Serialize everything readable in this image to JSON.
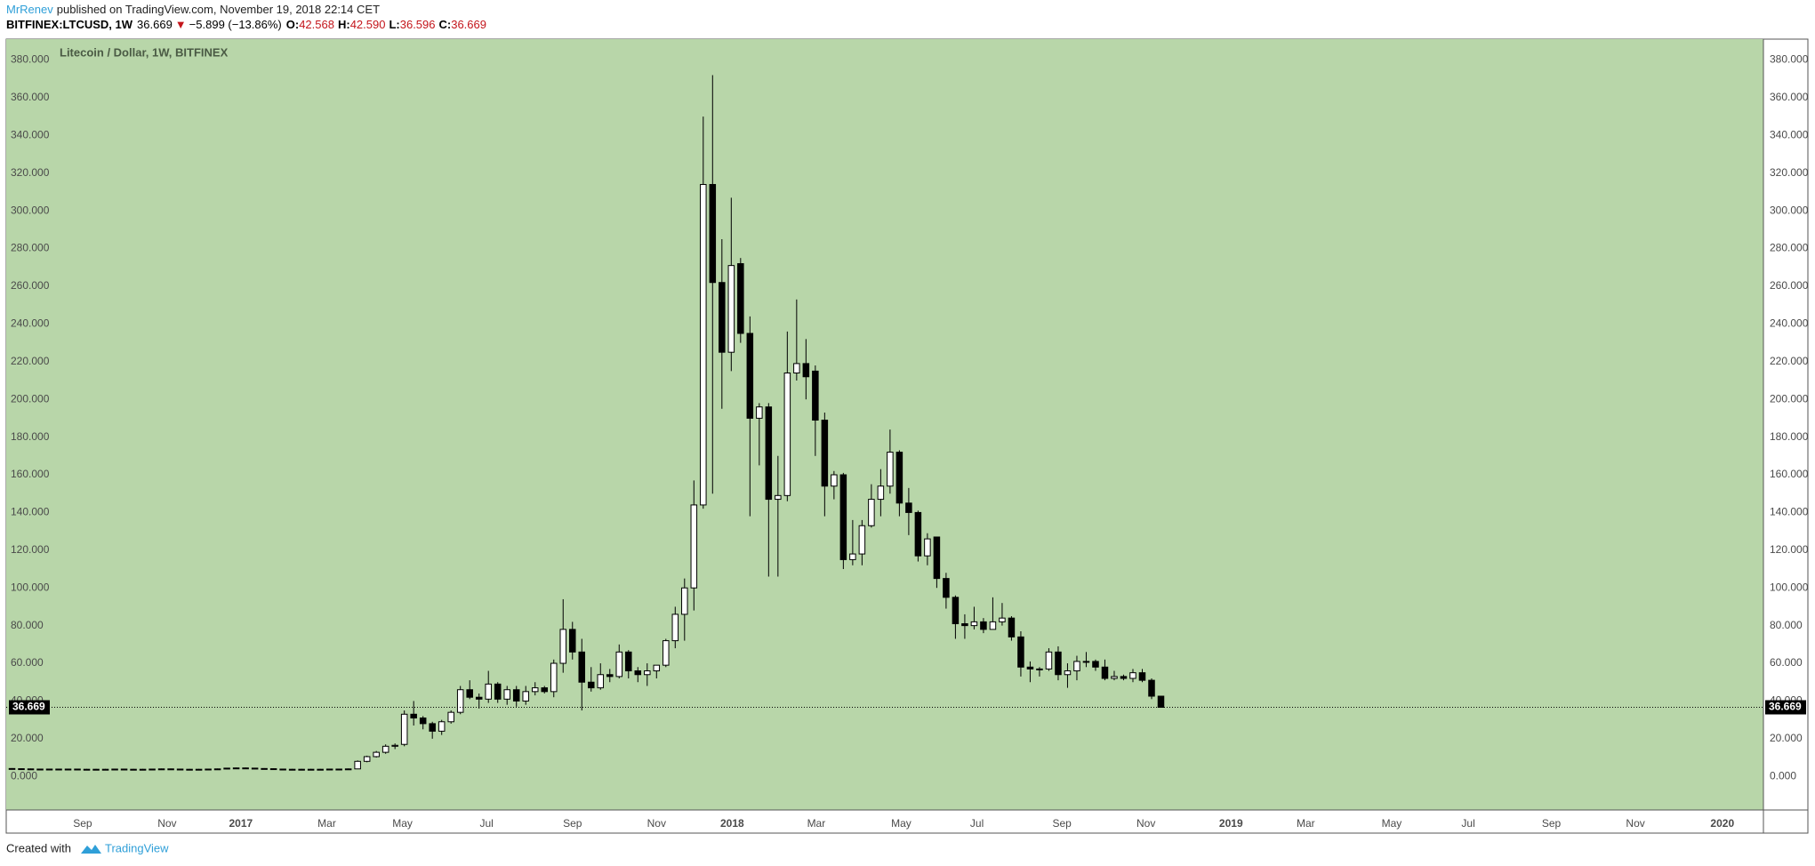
{
  "header": {
    "author": "MrRenev",
    "published": "published on TradingView.com, November 19, 2018 22:14 CET",
    "symbol": "BITFINEX:LTCUSD, 1W",
    "last": "36.669",
    "arrow": "▼",
    "change": "−5.899 (−13.86%)",
    "o_label": "O:",
    "o": "42.568",
    "h_label": "H:",
    "h": "42.590",
    "l_label": "L:",
    "l": "36.596",
    "c_label": "C:",
    "c": "36.669"
  },
  "footer": {
    "created": "Created with",
    "brand": "TradingView"
  },
  "chart_data": {
    "type": "candlestick",
    "title": "Litecoin / Dollar, 1W, BITFINEX",
    "up_color": "#ffffff",
    "down_color": "#000000",
    "wick_color": "#000000",
    "background": "#b8d6a9",
    "last_price": 36.669,
    "categories": [
      null,
      null,
      null,
      null,
      null,
      null,
      null,
      null,
      null,
      null,
      null,
      null,
      null,
      null,
      null,
      null,
      null,
      null,
      null,
      null,
      null,
      null,
      null,
      null,
      null,
      null,
      null,
      null,
      null,
      null,
      null,
      null,
      null,
      null,
      null,
      null,
      null,
      null,
      null,
      null,
      null,
      null,
      null,
      null,
      null,
      null,
      null,
      null,
      null,
      null,
      null,
      null,
      null,
      null,
      null,
      null,
      null,
      null,
      null,
      null,
      null,
      null,
      null,
      null,
      null,
      null,
      null,
      null,
      null,
      null,
      null,
      null,
      null,
      null,
      null,
      null,
      null,
      null,
      null,
      null,
      null,
      null,
      null,
      null,
      null,
      null,
      null,
      null,
      null,
      null,
      null,
      null,
      null,
      null,
      null,
      null,
      null,
      null,
      null,
      null,
      null,
      null,
      null,
      null,
      null,
      null,
      null,
      null,
      null,
      null,
      null,
      null,
      null,
      null,
      null,
      null,
      null,
      null,
      null,
      null,
      null,
      null,
      null,
      null
    ],
    "open": [
      4.2,
      4.1,
      4.0,
      3.9,
      3.8,
      3.9,
      3.8,
      3.9,
      3.8,
      3.7,
      3.8,
      3.8,
      3.9,
      3.8,
      3.7,
      3.8,
      3.9,
      4.0,
      3.9,
      3.8,
      3.7,
      3.8,
      3.9,
      4.0,
      4.4,
      4.5,
      4.4,
      4.2,
      4.1,
      3.9,
      3.8,
      3.8,
      3.7,
      3.8,
      3.8,
      3.9,
      3.9,
      4,
      8,
      10.5,
      12.8,
      16,
      17,
      33,
      31,
      28,
      24,
      29,
      34,
      46,
      42,
      41,
      49,
      41,
      46,
      40,
      45,
      47,
      45,
      60,
      78,
      66,
      50,
      47,
      54,
      53,
      66,
      56,
      54,
      56,
      59,
      72,
      86,
      100,
      144,
      314,
      262,
      225,
      272,
      235,
      190,
      196,
      147,
      149,
      214,
      219,
      215,
      189,
      154,
      160,
      115,
      118,
      133,
      147,
      154,
      172,
      145,
      140,
      117,
      127,
      105,
      95,
      81,
      80,
      82,
      78,
      82,
      84,
      74,
      58,
      57,
      57,
      66,
      54,
      56,
      61,
      61,
      58,
      52,
      53,
      52,
      55,
      51,
      42.568
    ],
    "high": [
      4.4,
      4.3,
      4.2,
      4.1,
      4.1,
      4.1,
      4.1,
      4.1,
      4.0,
      4.0,
      4.0,
      4.1,
      4.1,
      4.0,
      4.0,
      4.1,
      4.2,
      4.2,
      4.1,
      4.0,
      4.0,
      4.1,
      4.2,
      4.6,
      4.7,
      4.7,
      4.6,
      4.4,
      4.3,
      4.1,
      4.0,
      4.0,
      4.0,
      4.0,
      4.1,
      4.1,
      4.2,
      8.5,
      11,
      13.5,
      17,
      17.5,
      35,
      40,
      32,
      29,
      30,
      35,
      48,
      51,
      44,
      56,
      50,
      48,
      48,
      48,
      50,
      48,
      62,
      94,
      82,
      73,
      58,
      60,
      57,
      70,
      67,
      58,
      60,
      59,
      73,
      90,
      105,
      157,
      350,
      372,
      285,
      307,
      275,
      244,
      198,
      198,
      170,
      236,
      253,
      232,
      218,
      193,
      162,
      161,
      136,
      136,
      155,
      163,
      184,
      173,
      153,
      141,
      129,
      127,
      108,
      96,
      86,
      90,
      84,
      95,
      92,
      85,
      77,
      61,
      58,
      68,
      69,
      60,
      64,
      66,
      62,
      62,
      56,
      54,
      57,
      57,
      52,
      42.59
    ],
    "low": [
      3.9,
      3.8,
      3.7,
      3.6,
      3.6,
      3.6,
      3.6,
      3.6,
      3.5,
      3.5,
      3.6,
      3.6,
      3.6,
      3.5,
      3.5,
      3.6,
      3.7,
      3.7,
      3.6,
      3.5,
      3.5,
      3.6,
      3.7,
      3.8,
      4.2,
      4.2,
      4.0,
      3.9,
      3.7,
      3.6,
      3.6,
      3.5,
      3.5,
      3.6,
      3.6,
      3.7,
      3.7,
      3.9,
      7.5,
      10,
      12,
      14.5,
      16,
      27,
      25,
      20,
      22,
      28,
      33,
      41,
      36,
      39,
      39,
      38,
      37,
      38,
      43,
      44,
      42,
      55,
      62,
      35,
      45,
      46,
      50,
      52,
      52,
      50,
      48,
      52,
      58,
      68,
      72,
      88,
      142,
      150,
      195,
      215,
      230,
      138,
      165,
      106,
      106,
      146,
      210,
      200,
      170,
      138,
      147,
      110,
      112,
      112,
      132,
      138,
      150,
      138,
      128,
      114,
      112,
      100,
      89,
      73,
      73,
      78,
      76,
      78,
      80,
      72,
      53,
      50,
      53,
      56,
      51,
      47,
      51,
      58,
      56,
      51,
      51,
      51,
      50,
      50,
      41,
      36.596
    ],
    "close": [
      4.1,
      4.0,
      3.9,
      3.8,
      3.9,
      3.8,
      3.9,
      3.8,
      3.7,
      3.8,
      3.8,
      3.9,
      3.8,
      3.7,
      3.8,
      3.9,
      4.0,
      3.9,
      3.8,
      3.7,
      3.8,
      3.9,
      4.0,
      4.4,
      4.5,
      4.4,
      4.2,
      4.1,
      3.9,
      3.8,
      3.8,
      3.7,
      3.8,
      3.8,
      3.9,
      3.9,
      4.0,
      8,
      10.5,
      12.8,
      16,
      16.5,
      33,
      31,
      28,
      24,
      29,
      34,
      46,
      42,
      41,
      49,
      41,
      46,
      40,
      45,
      47,
      45,
      60,
      78,
      66,
      50,
      47,
      54,
      53,
      66,
      56,
      54,
      56,
      59,
      72,
      86,
      100,
      144,
      314,
      262,
      225,
      271,
      235,
      190,
      196,
      147,
      149,
      214,
      219,
      212,
      189,
      154,
      160,
      115,
      118,
      133,
      147,
      154,
      172,
      145,
      140,
      117,
      126,
      105,
      95,
      81,
      80,
      82,
      78,
      82,
      84,
      74,
      58,
      57,
      57,
      66,
      54,
      56,
      61,
      61,
      58,
      52,
      53,
      52,
      55,
      51,
      42.568,
      36.669
    ],
    "xlim": [
      -0.62,
      187.5
    ],
    "xticks": [
      {
        "value": 7.56,
        "label": "Sep"
      },
      {
        "value": 16.6,
        "label": "Nov"
      },
      {
        "value": 24.5,
        "label": "2017"
      },
      {
        "value": 33.7,
        "label": "Mar"
      },
      {
        "value": 41.8,
        "label": "May"
      },
      {
        "value": 50.8,
        "label": "Jul"
      },
      {
        "value": 60.0,
        "label": "Sep"
      },
      {
        "value": 69.0,
        "label": "Nov"
      },
      {
        "value": 77.1,
        "label": "2018"
      },
      {
        "value": 86.1,
        "label": "Mar"
      },
      {
        "value": 95.2,
        "label": "May"
      },
      {
        "value": 103.3,
        "label": "Jul"
      },
      {
        "value": 112.4,
        "label": "Sep"
      },
      {
        "value": 121.4,
        "label": "Nov"
      },
      {
        "value": 130.5,
        "label": "2019"
      },
      {
        "value": 138.5,
        "label": "Mar"
      },
      {
        "value": 147.7,
        "label": "May"
      },
      {
        "value": 155.9,
        "label": "Jul"
      },
      {
        "value": 164.8,
        "label": "Sep"
      },
      {
        "value": 173.8,
        "label": "Nov"
      },
      {
        "value": 183.1,
        "label": "2020"
      }
    ],
    "ylim": [
      -17.8,
      391.1
    ],
    "yticks": [
      {
        "value": 0,
        "label": "0.000"
      },
      {
        "value": 20,
        "label": "20.000"
      },
      {
        "value": 40,
        "label": "40.000"
      },
      {
        "value": 60,
        "label": "60.000"
      },
      {
        "value": 80,
        "label": "80.000"
      },
      {
        "value": 100,
        "label": "100.000"
      },
      {
        "value": 120,
        "label": "120.000"
      },
      {
        "value": 140,
        "label": "140.000"
      },
      {
        "value": 160,
        "label": "160.000"
      },
      {
        "value": 180,
        "label": "180.000"
      },
      {
        "value": 200,
        "label": "200.000"
      },
      {
        "value": 220,
        "label": "220.000"
      },
      {
        "value": 240,
        "label": "240.000"
      },
      {
        "value": 260,
        "label": "260.000"
      },
      {
        "value": 280,
        "label": "280.000"
      },
      {
        "value": 300,
        "label": "300.000"
      },
      {
        "value": 320,
        "label": "320.000"
      },
      {
        "value": 340,
        "label": "340.000"
      },
      {
        "value": 360,
        "label": "360.000"
      },
      {
        "value": 380,
        "label": "380.000"
      }
    ]
  }
}
